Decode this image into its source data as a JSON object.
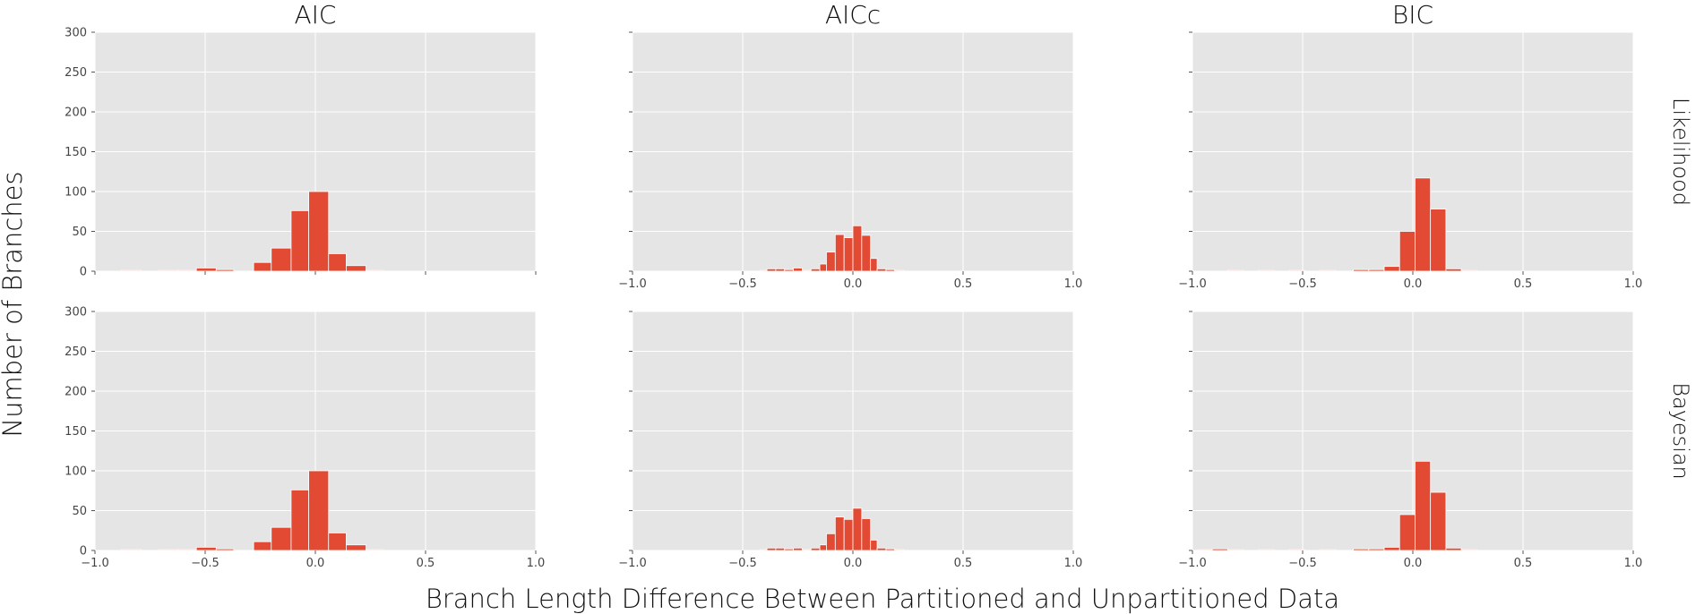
{
  "colors": {
    "panel_bg": "#e5e5e5",
    "grid": "#ffffff",
    "bar_fill": "#e24a33",
    "bar_edge": "#ffffff",
    "text": "#111111",
    "tick_text": "#444444"
  },
  "figure": {
    "ylabel": "Number of Branches",
    "xlabel": "Branch Length Difference Between Partitioned and Unpartitioned Data"
  },
  "chart_data": [
    {
      "type": "bar",
      "col_title": "AIC",
      "row_label": "",
      "xlim": [
        -1.0,
        1.0
      ],
      "ylim": [
        0,
        300
      ],
      "xticks": [
        "−1.0",
        "−0.5",
        "0.0",
        "0.5",
        "1.0"
      ],
      "yticks": [
        "0",
        "50",
        "100",
        "150",
        "200",
        "250",
        "300"
      ],
      "show_xticklabels": false,
      "show_yticklabels": true,
      "grid": true,
      "bins": [
        {
          "x0": -0.88,
          "x1": -0.79,
          "value": 1
        },
        {
          "x0": -0.79,
          "x1": -0.71,
          "value": 0
        },
        {
          "x0": -0.71,
          "x1": -0.62,
          "value": 1
        },
        {
          "x0": -0.62,
          "x1": -0.54,
          "value": 1
        },
        {
          "x0": -0.54,
          "x1": -0.45,
          "value": 4
        },
        {
          "x0": -0.45,
          "x1": -0.37,
          "value": 2
        },
        {
          "x0": -0.37,
          "x1": -0.28,
          "value": 0
        },
        {
          "x0": -0.28,
          "x1": -0.2,
          "value": 11
        },
        {
          "x0": -0.2,
          "x1": -0.11,
          "value": 29
        },
        {
          "x0": -0.11,
          "x1": -0.03,
          "value": 76
        },
        {
          "x0": -0.03,
          "x1": 0.06,
          "value": 100
        },
        {
          "x0": 0.06,
          "x1": 0.14,
          "value": 22
        },
        {
          "x0": 0.14,
          "x1": 0.23,
          "value": 7
        },
        {
          "x0": 0.23,
          "x1": 0.31,
          "value": 1
        }
      ]
    },
    {
      "type": "bar",
      "col_title": "AICc",
      "row_label": "",
      "xlim": [
        -1.0,
        1.0
      ],
      "ylim": [
        0,
        300
      ],
      "xticks": [
        "−1.0",
        "−0.5",
        "0.0",
        "0.5",
        "1.0"
      ],
      "yticks": [
        "0",
        "50",
        "100",
        "150",
        "200",
        "250",
        "300"
      ],
      "show_xticklabels": true,
      "show_yticklabels": false,
      "grid": true,
      "bins": [
        {
          "x0": -0.42,
          "x1": -0.39,
          "value": 1
        },
        {
          "x0": -0.39,
          "x1": -0.35,
          "value": 3
        },
        {
          "x0": -0.35,
          "x1": -0.31,
          "value": 3
        },
        {
          "x0": -0.31,
          "x1": -0.27,
          "value": 2
        },
        {
          "x0": -0.27,
          "x1": -0.23,
          "value": 4
        },
        {
          "x0": -0.23,
          "x1": -0.19,
          "value": 1
        },
        {
          "x0": -0.19,
          "x1": -0.15,
          "value": 3
        },
        {
          "x0": -0.15,
          "x1": -0.12,
          "value": 9
        },
        {
          "x0": -0.12,
          "x1": -0.08,
          "value": 24
        },
        {
          "x0": -0.08,
          "x1": -0.04,
          "value": 46
        },
        {
          "x0": -0.04,
          "x1": 0.0,
          "value": 42
        },
        {
          "x0": 0.0,
          "x1": 0.04,
          "value": 57
        },
        {
          "x0": 0.04,
          "x1": 0.08,
          "value": 45
        },
        {
          "x0": 0.08,
          "x1": 0.11,
          "value": 16
        },
        {
          "x0": 0.11,
          "x1": 0.15,
          "value": 3
        },
        {
          "x0": 0.15,
          "x1": 0.19,
          "value": 2
        },
        {
          "x0": 0.19,
          "x1": 0.23,
          "value": 1
        }
      ]
    },
    {
      "type": "bar",
      "col_title": "BIC",
      "row_label": "Likelihood",
      "xlim": [
        -1.0,
        1.0
      ],
      "ylim": [
        0,
        300
      ],
      "xticks": [
        "−1.0",
        "−0.5",
        "0.0",
        "0.5",
        "1.0"
      ],
      "yticks": [
        "0",
        "50",
        "100",
        "150",
        "200",
        "250",
        "300"
      ],
      "show_xticklabels": true,
      "show_yticklabels": false,
      "grid": true,
      "bins": [
        {
          "x0": -0.84,
          "x1": -0.77,
          "value": 1
        },
        {
          "x0": -0.77,
          "x1": -0.7,
          "value": 0
        },
        {
          "x0": -0.7,
          "x1": -0.63,
          "value": 1
        },
        {
          "x0": -0.63,
          "x1": -0.56,
          "value": 0
        },
        {
          "x0": -0.56,
          "x1": -0.49,
          "value": 1
        },
        {
          "x0": -0.49,
          "x1": -0.42,
          "value": 0
        },
        {
          "x0": -0.42,
          "x1": -0.35,
          "value": 1
        },
        {
          "x0": -0.35,
          "x1": -0.27,
          "value": 0
        },
        {
          "x0": -0.27,
          "x1": -0.2,
          "value": 2
        },
        {
          "x0": -0.2,
          "x1": -0.13,
          "value": 2
        },
        {
          "x0": -0.13,
          "x1": -0.06,
          "value": 6
        },
        {
          "x0": -0.06,
          "x1": 0.01,
          "value": 50
        },
        {
          "x0": 0.01,
          "x1": 0.08,
          "value": 117
        },
        {
          "x0": 0.08,
          "x1": 0.15,
          "value": 78
        },
        {
          "x0": 0.15,
          "x1": 0.22,
          "value": 3
        },
        {
          "x0": 0.22,
          "x1": 0.29,
          "value": 1
        }
      ]
    },
    {
      "type": "bar",
      "col_title": "",
      "row_label": "",
      "xlim": [
        -1.0,
        1.0
      ],
      "ylim": [
        0,
        300
      ],
      "xticks": [
        "−1.0",
        "−0.5",
        "0.0",
        "0.5",
        "1.0"
      ],
      "yticks": [
        "0",
        "50",
        "100",
        "150",
        "200",
        "250",
        "300"
      ],
      "show_xticklabels": true,
      "show_yticklabels": true,
      "grid": true,
      "bins": [
        {
          "x0": -0.88,
          "x1": -0.79,
          "value": 1
        },
        {
          "x0": -0.79,
          "x1": -0.71,
          "value": 0
        },
        {
          "x0": -0.71,
          "x1": -0.62,
          "value": 1
        },
        {
          "x0": -0.62,
          "x1": -0.54,
          "value": 1
        },
        {
          "x0": -0.54,
          "x1": -0.45,
          "value": 4
        },
        {
          "x0": -0.45,
          "x1": -0.37,
          "value": 2
        },
        {
          "x0": -0.37,
          "x1": -0.28,
          "value": 0
        },
        {
          "x0": -0.28,
          "x1": -0.2,
          "value": 11
        },
        {
          "x0": -0.2,
          "x1": -0.11,
          "value": 29
        },
        {
          "x0": -0.11,
          "x1": -0.03,
          "value": 76
        },
        {
          "x0": -0.03,
          "x1": 0.06,
          "value": 100
        },
        {
          "x0": 0.06,
          "x1": 0.14,
          "value": 22
        },
        {
          "x0": 0.14,
          "x1": 0.23,
          "value": 7
        },
        {
          "x0": 0.23,
          "x1": 0.31,
          "value": 1
        }
      ]
    },
    {
      "type": "bar",
      "col_title": "",
      "row_label": "",
      "xlim": [
        -1.0,
        1.0
      ],
      "ylim": [
        0,
        300
      ],
      "xticks": [
        "−1.0",
        "−0.5",
        "0.0",
        "0.5",
        "1.0"
      ],
      "yticks": [
        "0",
        "50",
        "100",
        "150",
        "200",
        "250",
        "300"
      ],
      "show_xticklabels": true,
      "show_yticklabels": false,
      "grid": true,
      "bins": [
        {
          "x0": -0.42,
          "x1": -0.39,
          "value": 1
        },
        {
          "x0": -0.39,
          "x1": -0.35,
          "value": 3
        },
        {
          "x0": -0.35,
          "x1": -0.31,
          "value": 3
        },
        {
          "x0": -0.31,
          "x1": -0.27,
          "value": 2
        },
        {
          "x0": -0.27,
          "x1": -0.23,
          "value": 3
        },
        {
          "x0": -0.23,
          "x1": -0.19,
          "value": 1
        },
        {
          "x0": -0.19,
          "x1": -0.15,
          "value": 3
        },
        {
          "x0": -0.15,
          "x1": -0.12,
          "value": 7
        },
        {
          "x0": -0.12,
          "x1": -0.08,
          "value": 21
        },
        {
          "x0": -0.08,
          "x1": -0.04,
          "value": 42
        },
        {
          "x0": -0.04,
          "x1": 0.0,
          "value": 39
        },
        {
          "x0": 0.0,
          "x1": 0.04,
          "value": 53
        },
        {
          "x0": 0.04,
          "x1": 0.08,
          "value": 40
        },
        {
          "x0": 0.08,
          "x1": 0.11,
          "value": 13
        },
        {
          "x0": 0.11,
          "x1": 0.15,
          "value": 3
        },
        {
          "x0": 0.15,
          "x1": 0.19,
          "value": 2
        },
        {
          "x0": 0.19,
          "x1": 0.23,
          "value": 1
        }
      ]
    },
    {
      "type": "bar",
      "col_title": "",
      "row_label": "Bayesian",
      "xlim": [
        -1.0,
        1.0
      ],
      "ylim": [
        0,
        300
      ],
      "xticks": [
        "−1.0",
        "−0.5",
        "0.0",
        "0.5",
        "1.0"
      ],
      "yticks": [
        "0",
        "50",
        "100",
        "150",
        "200",
        "250",
        "300"
      ],
      "show_xticklabels": true,
      "show_yticklabels": false,
      "grid": true,
      "bins": [
        {
          "x0": -0.98,
          "x1": -0.91,
          "value": 1
        },
        {
          "x0": -0.91,
          "x1": -0.84,
          "value": 2
        },
        {
          "x0": -0.84,
          "x1": -0.77,
          "value": 1
        },
        {
          "x0": -0.77,
          "x1": -0.7,
          "value": 0
        },
        {
          "x0": -0.7,
          "x1": -0.63,
          "value": 1
        },
        {
          "x0": -0.63,
          "x1": -0.56,
          "value": 0
        },
        {
          "x0": -0.56,
          "x1": -0.49,
          "value": 1
        },
        {
          "x0": -0.49,
          "x1": -0.42,
          "value": 0
        },
        {
          "x0": -0.42,
          "x1": -0.35,
          "value": 1
        },
        {
          "x0": -0.35,
          "x1": -0.27,
          "value": 0
        },
        {
          "x0": -0.27,
          "x1": -0.2,
          "value": 2
        },
        {
          "x0": -0.2,
          "x1": -0.13,
          "value": 2
        },
        {
          "x0": -0.13,
          "x1": -0.06,
          "value": 4
        },
        {
          "x0": -0.06,
          "x1": 0.01,
          "value": 45
        },
        {
          "x0": 0.01,
          "x1": 0.08,
          "value": 112
        },
        {
          "x0": 0.08,
          "x1": 0.15,
          "value": 73
        },
        {
          "x0": 0.15,
          "x1": 0.22,
          "value": 3
        },
        {
          "x0": 0.22,
          "x1": 0.29,
          "value": 1
        }
      ]
    }
  ]
}
